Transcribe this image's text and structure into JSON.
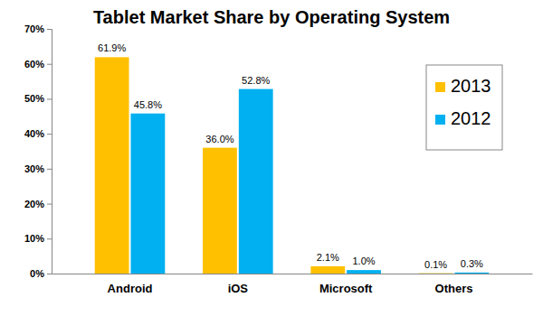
{
  "chart_data": {
    "type": "bar",
    "title": "Tablet Market Share by Operating System",
    "categories": [
      "Android",
      "iOS",
      "Microsoft",
      "Others"
    ],
    "series": [
      {
        "name": "2013",
        "color": "#ffc000",
        "values": [
          61.9,
          36.0,
          2.1,
          0.1
        ],
        "value_labels": [
          "61.9%",
          "36.0%",
          "2.1%",
          "0.1%"
        ]
      },
      {
        "name": "2012",
        "color": "#00b0f0",
        "values": [
          45.8,
          52.8,
          1.0,
          0.3
        ],
        "value_labels": [
          "45.8%",
          "52.8%",
          "1.0%",
          "0.3%"
        ]
      }
    ],
    "ylim": [
      0,
      70
    ],
    "yticks": [
      {
        "value": 0,
        "label": "0%"
      },
      {
        "value": 10,
        "label": "10%"
      },
      {
        "value": 20,
        "label": "20%"
      },
      {
        "value": 30,
        "label": "30%"
      },
      {
        "value": 40,
        "label": "40%"
      },
      {
        "value": 50,
        "label": "50%"
      },
      {
        "value": 60,
        "label": "60%"
      },
      {
        "value": 70,
        "label": "70%"
      }
    ],
    "grid": false,
    "legend": "upper right",
    "data_labels": true
  }
}
